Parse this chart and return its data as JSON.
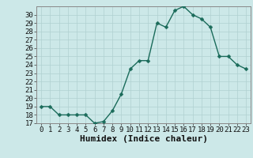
{
  "x": [
    0,
    1,
    2,
    3,
    4,
    5,
    6,
    7,
    8,
    9,
    10,
    11,
    12,
    13,
    14,
    15,
    16,
    17,
    18,
    19,
    20,
    21,
    22,
    23
  ],
  "y": [
    19,
    19,
    18,
    18,
    18,
    18,
    17,
    17.2,
    18.5,
    20.5,
    23.5,
    24.5,
    24.5,
    29,
    28.5,
    30.5,
    31,
    30,
    29.5,
    28.5,
    25,
    25,
    24,
    23.5
  ],
  "line_color": "#1a6b5a",
  "marker_color": "#1a6b5a",
  "bg_color": "#cce8e8",
  "grid_color": "#b0d0d0",
  "axis_color": "#888888",
  "xlabel": "Humidex (Indice chaleur)",
  "xlim": [
    -0.5,
    23.5
  ],
  "ylim": [
    17,
    31
  ],
  "yticks": [
    17,
    18,
    19,
    20,
    21,
    22,
    23,
    24,
    25,
    26,
    27,
    28,
    29,
    30
  ],
  "xticks": [
    0,
    1,
    2,
    3,
    4,
    5,
    6,
    7,
    8,
    9,
    10,
    11,
    12,
    13,
    14,
    15,
    16,
    17,
    18,
    19,
    20,
    21,
    22,
    23
  ],
  "tick_fontsize": 6.5,
  "xlabel_fontsize": 8,
  "marker_size": 2.5,
  "line_width": 1.0
}
